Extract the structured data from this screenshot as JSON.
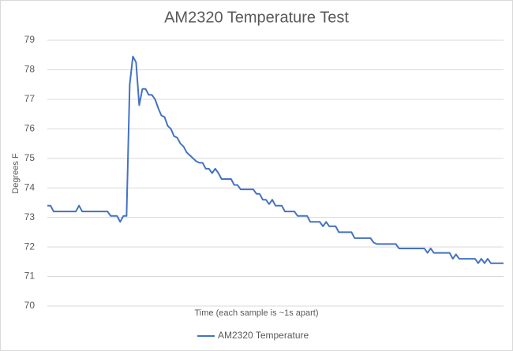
{
  "chart_data": {
    "type": "line",
    "title": "AM2320 Temperature Test",
    "x_label": "Time (each sample is ~1s apart)",
    "y_label": "Degrees F",
    "series": [
      {
        "name": "AM2320 Temperature",
        "color": "#4472c4",
        "values": [
          73.4,
          73.4,
          73.2,
          73.2,
          73.2,
          73.2,
          73.2,
          73.2,
          73.2,
          73.2,
          73.4,
          73.2,
          73.2,
          73.2,
          73.2,
          73.2,
          73.2,
          73.2,
          73.2,
          73.2,
          73.05,
          73.05,
          73.05,
          72.85,
          73.05,
          73.05,
          77.5,
          78.45,
          78.25,
          76.8,
          77.35,
          77.35,
          77.15,
          77.15,
          77.0,
          76.7,
          76.45,
          76.4,
          76.1,
          76.0,
          75.75,
          75.7,
          75.5,
          75.4,
          75.2,
          75.1,
          75.0,
          74.9,
          74.85,
          74.85,
          74.65,
          74.65,
          74.5,
          74.65,
          74.5,
          74.3,
          74.3,
          74.3,
          74.3,
          74.1,
          74.1,
          73.95,
          73.95,
          73.95,
          73.95,
          73.95,
          73.8,
          73.8,
          73.6,
          73.6,
          73.45,
          73.6,
          73.4,
          73.4,
          73.4,
          73.2,
          73.2,
          73.2,
          73.2,
          73.05,
          73.05,
          73.05,
          73.05,
          72.85,
          72.85,
          72.85,
          72.85,
          72.7,
          72.85,
          72.7,
          72.7,
          72.7,
          72.5,
          72.5,
          72.5,
          72.5,
          72.5,
          72.3,
          72.3,
          72.3,
          72.3,
          72.3,
          72.3,
          72.15,
          72.1,
          72.1,
          72.1,
          72.1,
          72.1,
          72.1,
          72.1,
          71.95,
          71.95,
          71.95,
          71.95,
          71.95,
          71.95,
          71.95,
          71.95,
          71.95,
          71.8,
          71.95,
          71.8,
          71.8,
          71.8,
          71.8,
          71.8,
          71.8,
          71.6,
          71.75,
          71.6,
          71.6,
          71.6,
          71.6,
          71.6,
          71.6,
          71.45,
          71.6,
          71.45,
          71.6,
          71.45,
          71.45,
          71.45,
          71.45,
          71.45
        ]
      }
    ],
    "ylim": [
      70,
      79
    ],
    "yticks": [
      70,
      71,
      72,
      73,
      74,
      75,
      76,
      77,
      78,
      79
    ],
    "grid": true,
    "legend": "bottom"
  }
}
